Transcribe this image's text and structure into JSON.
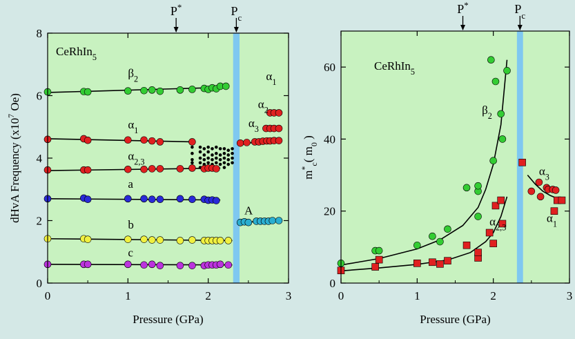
{
  "colors": {
    "background": "#d4e8e6",
    "plot_bg": "#c8f2c0",
    "band": "#7fc8f0",
    "green": "#33cc33",
    "red": "#e02020",
    "blue": "#2a2ad8",
    "yellow": "#f0f040",
    "magenta": "#bb33dd",
    "cyan": "#2aaed0",
    "black": "#000000"
  },
  "chart_data": [
    {
      "type": "scatter",
      "xlabel": "Pressure (GPa)",
      "ylabel": "dHvA Frequency (x10⁷ Oe)",
      "xlim": [
        0,
        3
      ],
      "ylim": [
        0,
        8
      ],
      "xticks": [
        0,
        1,
        2,
        3
      ],
      "yticks": [
        0,
        2,
        4,
        6,
        8
      ],
      "compound": "CeRhIn",
      "compound_sub": "5",
      "marker_top": [
        {
          "label": "P",
          "sup": "*",
          "x": 1.6
        },
        {
          "label": "P",
          "sub": "c",
          "x": 2.35
        }
      ],
      "band": [
        2.31,
        2.39
      ],
      "series": [
        {
          "name": "β",
          "sub": "2",
          "color": "green",
          "label_x": 1.0,
          "label_y": 6.6,
          "x": [
            0.0,
            0.45,
            0.5,
            1.0,
            1.2,
            1.3,
            1.4,
            1.65,
            1.8,
            1.95,
            2.0,
            2.05,
            2.1,
            2.15,
            2.22
          ],
          "y": [
            6.12,
            6.13,
            6.12,
            6.15,
            6.16,
            6.18,
            6.14,
            6.18,
            6.2,
            6.23,
            6.2,
            6.25,
            6.22,
            6.3,
            6.3
          ],
          "fit": [
            [
              0.0,
              6.1
            ],
            [
              2.25,
              6.27
            ]
          ]
        },
        {
          "name": "α",
          "sub": "1",
          "color": "red",
          "label_x": 1.0,
          "label_y": 4.95,
          "x": [
            0.0,
            0.45,
            0.5,
            1.0,
            1.2,
            1.3,
            1.4,
            1.8
          ],
          "y": [
            4.6,
            4.62,
            4.57,
            4.58,
            4.58,
            4.55,
            4.52,
            4.52
          ],
          "fit": [
            [
              0.0,
              4.62
            ],
            [
              1.8,
              4.52
            ]
          ]
        },
        {
          "name": "α",
          "sub": "2,3",
          "color": "red",
          "label_x": 1.0,
          "label_y": 3.95,
          "x": [
            0.0,
            0.45,
            0.5,
            1.0,
            1.2,
            1.3,
            1.4,
            1.65,
            1.8,
            1.95,
            2.0,
            2.05,
            2.1
          ],
          "y": [
            3.62,
            3.62,
            3.62,
            3.64,
            3.64,
            3.66,
            3.66,
            3.66,
            3.68,
            3.66,
            3.68,
            3.68,
            3.66
          ],
          "fit": [
            [
              0.0,
              3.6
            ],
            [
              2.15,
              3.68
            ]
          ]
        },
        {
          "name": "a",
          "color": "blue",
          "label_x": 1.0,
          "label_y": 3.05,
          "x": [
            0.0,
            0.45,
            0.5,
            1.0,
            1.2,
            1.3,
            1.4,
            1.65,
            1.8,
            1.95,
            2.0,
            2.05,
            2.1
          ],
          "y": [
            2.7,
            2.72,
            2.68,
            2.7,
            2.7,
            2.68,
            2.68,
            2.7,
            2.68,
            2.68,
            2.65,
            2.66,
            2.64
          ],
          "fit": [
            [
              0.0,
              2.7
            ],
            [
              2.15,
              2.66
            ]
          ]
        },
        {
          "name": "b",
          "color": "yellow",
          "label_x": 1.0,
          "label_y": 1.75,
          "x": [
            0.0,
            0.45,
            0.5,
            1.0,
            1.2,
            1.3,
            1.4,
            1.65,
            1.8,
            1.95,
            2.0,
            2.05,
            2.1,
            2.15,
            2.25
          ],
          "y": [
            1.42,
            1.42,
            1.4,
            1.4,
            1.4,
            1.38,
            1.38,
            1.36,
            1.38,
            1.36,
            1.36,
            1.36,
            1.36,
            1.36,
            1.36
          ],
          "fit": [
            [
              0.0,
              1.42
            ],
            [
              2.3,
              1.36
            ]
          ]
        },
        {
          "name": "c",
          "color": "magenta",
          "label_x": 1.0,
          "label_y": 0.85,
          "x": [
            0.0,
            0.45,
            0.5,
            1.0,
            1.2,
            1.3,
            1.4,
            1.65,
            1.8,
            1.95,
            2.0,
            2.05,
            2.1,
            2.15,
            2.25
          ],
          "y": [
            0.6,
            0.6,
            0.6,
            0.6,
            0.58,
            0.6,
            0.56,
            0.56,
            0.56,
            0.56,
            0.58,
            0.58,
            0.58,
            0.6,
            0.58
          ],
          "fit": [
            [
              0.0,
              0.6
            ],
            [
              2.3,
              0.58
            ]
          ]
        },
        {
          "name": "α",
          "sub": "1",
          "color": "red",
          "label_x": 2.72,
          "label_y": 6.5,
          "x": [
            2.77,
            2.82,
            2.88
          ],
          "y": [
            5.45,
            5.45,
            5.45
          ]
        },
        {
          "name": "α",
          "sub": "2",
          "color": "red",
          "label_x": 2.62,
          "label_y": 5.6,
          "x": [
            2.72,
            2.77,
            2.82,
            2.88
          ],
          "y": [
            4.95,
            4.95,
            4.95,
            4.95
          ]
        },
        {
          "name": "α",
          "sub": "3",
          "color": "red",
          "label_x": 2.5,
          "label_y": 5.0,
          "x": [
            2.4,
            2.48,
            2.58,
            2.63,
            2.68,
            2.73,
            2.77,
            2.82,
            2.88
          ],
          "y": [
            4.48,
            4.5,
            4.52,
            4.52,
            4.54,
            4.55,
            4.55,
            4.56,
            4.56
          ],
          "fit": [
            [
              2.38,
              4.46
            ],
            [
              2.9,
              4.56
            ]
          ]
        },
        {
          "name": "A",
          "color": "cyan",
          "label_x": 2.45,
          "label_y": 2.2,
          "x": [
            2.4,
            2.45,
            2.5,
            2.6,
            2.65,
            2.7,
            2.75,
            2.8,
            2.88
          ],
          "y": [
            1.94,
            1.96,
            1.94,
            1.98,
            1.98,
            1.98,
            1.98,
            2.0,
            2.0
          ],
          "fit": [
            [
              2.38,
              1.94
            ],
            [
              2.9,
              2.0
            ]
          ]
        }
      ],
      "black_dots": {
        "x": [
          1.8,
          1.8,
          1.8,
          1.8,
          1.8,
          1.9,
          1.9,
          1.9,
          1.9,
          1.9,
          1.95,
          1.95,
          1.95,
          1.95,
          2.0,
          2.0,
          2.0,
          2.0,
          2.0,
          2.05,
          2.05,
          2.05,
          2.05,
          2.1,
          2.1,
          2.1,
          2.1,
          2.1,
          2.15,
          2.15,
          2.15,
          2.15,
          2.2,
          2.2,
          2.2,
          2.2,
          2.2,
          2.25,
          2.25,
          2.25,
          2.25,
          2.3,
          2.3,
          2.3,
          2.3
        ],
        "y": [
          4.35,
          4.15,
          3.95,
          3.85,
          3.7,
          4.35,
          4.2,
          4.0,
          3.85,
          3.7,
          4.3,
          4.1,
          3.95,
          3.8,
          4.35,
          4.2,
          4.0,
          3.85,
          3.7,
          4.3,
          4.1,
          3.95,
          3.8,
          4.35,
          4.15,
          4.0,
          3.85,
          3.7,
          4.3,
          4.1,
          3.95,
          3.8,
          4.3,
          4.15,
          4.0,
          3.85,
          3.7,
          4.25,
          4.1,
          3.95,
          3.8,
          4.3,
          4.15,
          4.0,
          3.85
        ]
      }
    },
    {
      "type": "scatter",
      "xlabel": "Pressure (GPa)",
      "ylabel": "m*c ( m0 )",
      "xlim": [
        0,
        3
      ],
      "ylim": [
        0,
        70
      ],
      "xticks": [
        0,
        1,
        2,
        3
      ],
      "yticks": [
        0,
        20,
        40,
        60
      ],
      "compound": "CeRhIn",
      "compound_sub": "5",
      "marker_top": [
        {
          "label": "P",
          "sup": "*",
          "x": 1.6
        },
        {
          "label": "P",
          "sub": "c",
          "x": 2.35
        }
      ],
      "band": [
        2.31,
        2.39
      ],
      "series": [
        {
          "name": "β",
          "sub": "2",
          "color": "green",
          "marker": "circle",
          "label_x": 1.85,
          "label_y": 47,
          "x": [
            0.0,
            0.45,
            0.5,
            1.0,
            1.2,
            1.3,
            1.4,
            1.65,
            1.8,
            1.8,
            1.8,
            1.97,
            2.0,
            2.03,
            2.1,
            2.12,
            2.18
          ],
          "y": [
            5.5,
            9,
            9,
            10.5,
            13,
            11.5,
            15,
            26.5,
            25.5,
            27,
            18.5,
            62,
            34,
            56,
            47,
            40,
            59
          ]
        },
        {
          "name": "α",
          "sub": "2,3",
          "color": "red",
          "marker": "square",
          "label_x": 1.95,
          "label_y": 16,
          "x": [
            0.0,
            0.45,
            0.5,
            1.0,
            1.2,
            1.3,
            1.4,
            1.65,
            1.8,
            1.8,
            1.95,
            2.0,
            2.03,
            2.1,
            2.12
          ],
          "y": [
            3.5,
            4.5,
            6.5,
            5.5,
            5.8,
            5.3,
            6.2,
            10.5,
            7,
            8.5,
            14,
            11,
            21.5,
            23,
            16.5
          ]
        },
        {
          "name": "α",
          "sub": "3",
          "color": "red",
          "marker": "circle",
          "label_x": 2.6,
          "label_y": 30,
          "x": [
            2.5,
            2.6,
            2.62,
            2.7,
            2.72,
            2.78,
            2.82
          ],
          "y": [
            25.5,
            28,
            24,
            26.5,
            26,
            26,
            25.8
          ]
        },
        {
          "name": "α",
          "sub": "1",
          "color": "red",
          "marker": "square",
          "label_x": 2.7,
          "label_y": 17,
          "x": [
            2.38,
            2.8,
            2.84,
            2.9
          ],
          "y": [
            33.5,
            20,
            23,
            23
          ]
        }
      ],
      "curves": [
        {
          "x": [
            0.0,
            0.5,
            1.0,
            1.3,
            1.6,
            1.8,
            1.9,
            2.0,
            2.1,
            2.18
          ],
          "y": [
            5.0,
            6.8,
            9.5,
            12.0,
            16.0,
            21.0,
            26.0,
            33.0,
            44.0,
            62.0
          ]
        },
        {
          "x": [
            0.0,
            0.5,
            1.0,
            1.4,
            1.7,
            1.9,
            2.0,
            2.1,
            2.18
          ],
          "y": [
            3.4,
            4.2,
            5.2,
            6.4,
            8.5,
            11.5,
            14.0,
            18.5,
            24.0
          ]
        },
        {
          "x": [
            2.45,
            2.55,
            2.65,
            2.75,
            2.9
          ],
          "y": [
            30.0,
            27.5,
            25.5,
            24.3,
            23.0
          ]
        }
      ]
    }
  ]
}
